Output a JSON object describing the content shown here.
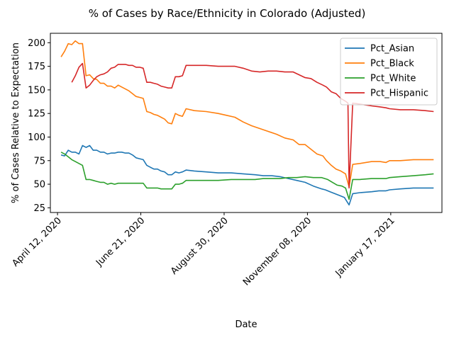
{
  "chart_data": {
    "type": "line",
    "title": "% of Cases by Race/Ethnicity in Colorado (Adjusted)",
    "xlabel": "Date",
    "ylabel": "% of Cases Relative to Expectation",
    "x_ticks": [
      "2020-04-12",
      "2020-06-21",
      "2020-08-30",
      "2020-11-08",
      "2021-01-17"
    ],
    "x_tick_labels": [
      "April 12, 2020",
      "June 21, 2020",
      "August 30, 2020",
      "November 08, 2020",
      "January 17, 2021"
    ],
    "xlim": [
      "2020-04-06",
      "2021-03-01"
    ],
    "ylim": [
      20,
      210
    ],
    "y_ticks": [
      25,
      50,
      75,
      100,
      125,
      150,
      175,
      200
    ],
    "grid": false,
    "legend_position": "top-right",
    "series": [
      {
        "name": "Pct_Asian",
        "color": "#1f77b4",
        "points": [
          [
            "2020-04-15",
            81
          ],
          [
            "2020-04-18",
            80
          ],
          [
            "2020-04-21",
            86
          ],
          [
            "2020-04-24",
            84
          ],
          [
            "2020-04-27",
            84
          ],
          [
            "2020-04-30",
            82
          ],
          [
            "2020-05-03",
            91
          ],
          [
            "2020-05-06",
            89
          ],
          [
            "2020-05-09",
            91
          ],
          [
            "2020-05-12",
            86
          ],
          [
            "2020-05-15",
            86
          ],
          [
            "2020-05-18",
            84
          ],
          [
            "2020-05-21",
            84
          ],
          [
            "2020-05-24",
            82
          ],
          [
            "2020-05-27",
            83
          ],
          [
            "2020-05-30",
            83
          ],
          [
            "2020-06-02",
            84
          ],
          [
            "2020-06-05",
            84
          ],
          [
            "2020-06-08",
            83
          ],
          [
            "2020-06-11",
            83
          ],
          [
            "2020-06-14",
            81
          ],
          [
            "2020-06-17",
            78
          ],
          [
            "2020-06-20",
            77
          ],
          [
            "2020-06-23",
            76
          ],
          [
            "2020-06-26",
            70
          ],
          [
            "2020-06-29",
            68
          ],
          [
            "2020-07-02",
            66
          ],
          [
            "2020-07-05",
            66
          ],
          [
            "2020-07-08",
            64
          ],
          [
            "2020-07-11",
            63
          ],
          [
            "2020-07-14",
            60
          ],
          [
            "2020-07-17",
            60
          ],
          [
            "2020-07-20",
            63
          ],
          [
            "2020-07-23",
            62
          ],
          [
            "2020-07-26",
            63
          ],
          [
            "2020-07-29",
            65
          ],
          [
            "2020-08-05",
            64
          ],
          [
            "2020-08-15",
            63
          ],
          [
            "2020-08-25",
            62
          ],
          [
            "2020-09-05",
            62
          ],
          [
            "2020-09-15",
            61
          ],
          [
            "2020-09-25",
            60
          ],
          [
            "2020-10-02",
            59
          ],
          [
            "2020-10-09",
            59
          ],
          [
            "2020-10-16",
            58
          ],
          [
            "2020-10-23",
            56
          ],
          [
            "2020-10-30",
            54
          ],
          [
            "2020-11-06",
            52
          ],
          [
            "2020-11-13",
            48
          ],
          [
            "2020-11-20",
            45
          ],
          [
            "2020-11-23",
            44
          ],
          [
            "2020-11-27",
            42
          ],
          [
            "2020-12-01",
            40
          ],
          [
            "2020-12-05",
            38
          ],
          [
            "2020-12-09",
            36
          ],
          [
            "2020-12-13",
            28
          ],
          [
            "2020-12-16",
            40
          ],
          [
            "2020-12-22",
            41
          ],
          [
            "2021-01-01",
            42
          ],
          [
            "2021-01-07",
            43
          ],
          [
            "2021-01-13",
            43
          ],
          [
            "2021-01-16",
            44
          ],
          [
            "2021-01-25",
            45
          ],
          [
            "2021-02-05",
            46
          ],
          [
            "2021-02-15",
            46
          ],
          [
            "2021-02-22",
            46
          ]
        ]
      },
      {
        "name": "Pct_Black",
        "color": "#ff7f0e",
        "points": [
          [
            "2020-04-15",
            185
          ],
          [
            "2020-04-18",
            191
          ],
          [
            "2020-04-21",
            199
          ],
          [
            "2020-04-24",
            198
          ],
          [
            "2020-04-27",
            202
          ],
          [
            "2020-04-30",
            199
          ],
          [
            "2020-05-03",
            199
          ],
          [
            "2020-05-06",
            165
          ],
          [
            "2020-05-09",
            166
          ],
          [
            "2020-05-12",
            162
          ],
          [
            "2020-05-15",
            161
          ],
          [
            "2020-05-18",
            157
          ],
          [
            "2020-05-21",
            157
          ],
          [
            "2020-05-24",
            154
          ],
          [
            "2020-05-27",
            154
          ],
          [
            "2020-05-30",
            152
          ],
          [
            "2020-06-02",
            155
          ],
          [
            "2020-06-05",
            153
          ],
          [
            "2020-06-08",
            151
          ],
          [
            "2020-06-11",
            149
          ],
          [
            "2020-06-14",
            146
          ],
          [
            "2020-06-17",
            143
          ],
          [
            "2020-06-20",
            142
          ],
          [
            "2020-06-23",
            141
          ],
          [
            "2020-06-26",
            127
          ],
          [
            "2020-06-29",
            126
          ],
          [
            "2020-07-02",
            124
          ],
          [
            "2020-07-05",
            123
          ],
          [
            "2020-07-08",
            121
          ],
          [
            "2020-07-11",
            119
          ],
          [
            "2020-07-14",
            115
          ],
          [
            "2020-07-17",
            114
          ],
          [
            "2020-07-20",
            125
          ],
          [
            "2020-07-23",
            123
          ],
          [
            "2020-07-26",
            122
          ],
          [
            "2020-07-29",
            130
          ],
          [
            "2020-08-05",
            128
          ],
          [
            "2020-08-15",
            127
          ],
          [
            "2020-08-25",
            125
          ],
          [
            "2020-09-01",
            123
          ],
          [
            "2020-09-08",
            121
          ],
          [
            "2020-09-15",
            116
          ],
          [
            "2020-09-22",
            112
          ],
          [
            "2020-09-29",
            109
          ],
          [
            "2020-10-06",
            106
          ],
          [
            "2020-10-13",
            103
          ],
          [
            "2020-10-20",
            99
          ],
          [
            "2020-10-27",
            97
          ],
          [
            "2020-11-01",
            92
          ],
          [
            "2020-11-06",
            92
          ],
          [
            "2020-11-11",
            87
          ],
          [
            "2020-11-16",
            82
          ],
          [
            "2020-11-21",
            80
          ],
          [
            "2020-11-24",
            75
          ],
          [
            "2020-11-28",
            70
          ],
          [
            "2020-12-02",
            66
          ],
          [
            "2020-12-06",
            64
          ],
          [
            "2020-12-10",
            61
          ],
          [
            "2020-12-13",
            47
          ],
          [
            "2020-12-16",
            71
          ],
          [
            "2020-12-22",
            72
          ],
          [
            "2021-01-01",
            74
          ],
          [
            "2021-01-08",
            74
          ],
          [
            "2021-01-13",
            73
          ],
          [
            "2021-01-16",
            75
          ],
          [
            "2021-01-25",
            75
          ],
          [
            "2021-02-05",
            76
          ],
          [
            "2021-02-15",
            76
          ],
          [
            "2021-02-22",
            76
          ]
        ]
      },
      {
        "name": "Pct_White",
        "color": "#2ca02c",
        "points": [
          [
            "2020-04-15",
            84
          ],
          [
            "2020-04-18",
            82
          ],
          [
            "2020-04-21",
            79
          ],
          [
            "2020-04-24",
            76
          ],
          [
            "2020-04-27",
            74
          ],
          [
            "2020-04-30",
            72
          ],
          [
            "2020-05-03",
            70
          ],
          [
            "2020-05-06",
            55
          ],
          [
            "2020-05-09",
            55
          ],
          [
            "2020-05-12",
            54
          ],
          [
            "2020-05-15",
            53
          ],
          [
            "2020-05-18",
            52
          ],
          [
            "2020-05-21",
            52
          ],
          [
            "2020-05-24",
            50
          ],
          [
            "2020-05-27",
            51
          ],
          [
            "2020-05-30",
            50
          ],
          [
            "2020-06-02",
            51
          ],
          [
            "2020-06-05",
            51
          ],
          [
            "2020-06-08",
            51
          ],
          [
            "2020-06-11",
            51
          ],
          [
            "2020-06-14",
            51
          ],
          [
            "2020-06-17",
            51
          ],
          [
            "2020-06-20",
            51
          ],
          [
            "2020-06-23",
            51
          ],
          [
            "2020-06-26",
            46
          ],
          [
            "2020-06-29",
            46
          ],
          [
            "2020-07-02",
            46
          ],
          [
            "2020-07-05",
            46
          ],
          [
            "2020-07-08",
            45
          ],
          [
            "2020-07-11",
            45
          ],
          [
            "2020-07-14",
            45
          ],
          [
            "2020-07-17",
            45
          ],
          [
            "2020-07-20",
            50
          ],
          [
            "2020-07-23",
            50
          ],
          [
            "2020-07-26",
            51
          ],
          [
            "2020-07-29",
            54
          ],
          [
            "2020-08-05",
            54
          ],
          [
            "2020-08-15",
            54
          ],
          [
            "2020-08-25",
            54
          ],
          [
            "2020-09-05",
            55
          ],
          [
            "2020-09-15",
            55
          ],
          [
            "2020-09-25",
            55
          ],
          [
            "2020-10-02",
            56
          ],
          [
            "2020-10-09",
            56
          ],
          [
            "2020-10-16",
            56
          ],
          [
            "2020-10-23",
            57
          ],
          [
            "2020-10-30",
            57
          ],
          [
            "2020-11-06",
            58
          ],
          [
            "2020-11-13",
            57
          ],
          [
            "2020-11-20",
            57
          ],
          [
            "2020-11-25",
            55
          ],
          [
            "2020-11-29",
            52
          ],
          [
            "2020-12-03",
            49
          ],
          [
            "2020-12-07",
            48
          ],
          [
            "2020-12-10",
            46
          ],
          [
            "2020-12-13",
            34
          ],
          [
            "2020-12-16",
            55
          ],
          [
            "2020-12-22",
            55
          ],
          [
            "2021-01-01",
            56
          ],
          [
            "2021-01-08",
            56
          ],
          [
            "2021-01-13",
            56
          ],
          [
            "2021-01-16",
            57
          ],
          [
            "2021-01-25",
            58
          ],
          [
            "2021-02-05",
            59
          ],
          [
            "2021-02-15",
            60
          ],
          [
            "2021-02-22",
            61
          ]
        ]
      },
      {
        "name": "Pct_Hispanic",
        "color": "#d62728",
        "points": [
          [
            "2020-04-24",
            158
          ],
          [
            "2020-04-27",
            165
          ],
          [
            "2020-04-30",
            174
          ],
          [
            "2020-05-03",
            178
          ],
          [
            "2020-05-06",
            152
          ],
          [
            "2020-05-09",
            155
          ],
          [
            "2020-05-12",
            160
          ],
          [
            "2020-05-15",
            164
          ],
          [
            "2020-05-18",
            166
          ],
          [
            "2020-05-21",
            167
          ],
          [
            "2020-05-24",
            169
          ],
          [
            "2020-05-27",
            173
          ],
          [
            "2020-05-30",
            174
          ],
          [
            "2020-06-02",
            177
          ],
          [
            "2020-06-05",
            177
          ],
          [
            "2020-06-08",
            177
          ],
          [
            "2020-06-11",
            176
          ],
          [
            "2020-06-14",
            176
          ],
          [
            "2020-06-17",
            174
          ],
          [
            "2020-06-20",
            174
          ],
          [
            "2020-06-23",
            173
          ],
          [
            "2020-06-26",
            158
          ],
          [
            "2020-06-29",
            158
          ],
          [
            "2020-07-02",
            157
          ],
          [
            "2020-07-05",
            156
          ],
          [
            "2020-07-08",
            154
          ],
          [
            "2020-07-11",
            153
          ],
          [
            "2020-07-14",
            152
          ],
          [
            "2020-07-17",
            152
          ],
          [
            "2020-07-20",
            164
          ],
          [
            "2020-07-23",
            164
          ],
          [
            "2020-07-26",
            165
          ],
          [
            "2020-07-29",
            176
          ],
          [
            "2020-08-05",
            176
          ],
          [
            "2020-08-15",
            176
          ],
          [
            "2020-08-25",
            175
          ],
          [
            "2020-09-01",
            175
          ],
          [
            "2020-09-08",
            175
          ],
          [
            "2020-09-15",
            173
          ],
          [
            "2020-09-22",
            170
          ],
          [
            "2020-09-29",
            169
          ],
          [
            "2020-10-06",
            170
          ],
          [
            "2020-10-13",
            170
          ],
          [
            "2020-10-20",
            169
          ],
          [
            "2020-10-27",
            169
          ],
          [
            "2020-11-01",
            166
          ],
          [
            "2020-11-06",
            163
          ],
          [
            "2020-11-11",
            162
          ],
          [
            "2020-11-16",
            158
          ],
          [
            "2020-11-21",
            155
          ],
          [
            "2020-11-24",
            153
          ],
          [
            "2020-11-28",
            148
          ],
          [
            "2020-12-02",
            146
          ],
          [
            "2020-12-06",
            141
          ],
          [
            "2020-12-10",
            138
          ],
          [
            "2020-12-12",
            136
          ],
          [
            "2020-12-13",
            46
          ],
          [
            "2020-12-16",
            136
          ],
          [
            "2020-12-22",
            135
          ],
          [
            "2021-01-01",
            133
          ],
          [
            "2021-01-08",
            132
          ],
          [
            "2021-01-13",
            131
          ],
          [
            "2021-01-16",
            130
          ],
          [
            "2021-01-25",
            129
          ],
          [
            "2021-02-05",
            129
          ],
          [
            "2021-02-15",
            128
          ],
          [
            "2021-02-22",
            127
          ]
        ]
      }
    ]
  }
}
